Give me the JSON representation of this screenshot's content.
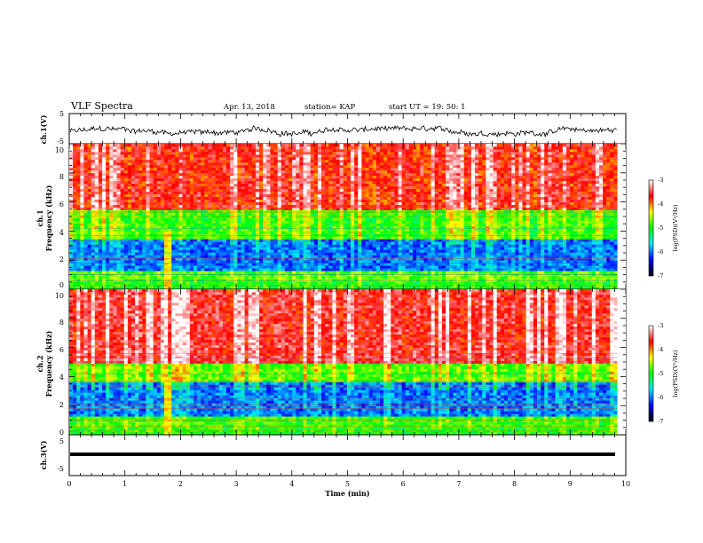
{
  "header": {
    "title": "VLF Spectra",
    "date": "Apr. 13, 2018",
    "station": "station= KAP",
    "start": "start  UT =   19: 50: 1"
  },
  "chart_data": [
    {
      "type": "line",
      "panel": "ch1-waveform",
      "ylabel": "ch.1(V)",
      "ylim": [
        -5,
        5
      ],
      "xlim": [
        0,
        9.85
      ],
      "y_tick_labels": [
        "5",
        "-5"
      ],
      "amplitude_range": [
        -2.5,
        0.5
      ]
    },
    {
      "type": "heatmap",
      "panel": "ch1-spectrogram",
      "ylabel_line1": "ch.1",
      "ylabel_line2": "Frequency  (kHz)",
      "ylim": [
        0,
        10
      ],
      "y_tick_labels": [
        "0",
        "2",
        "4",
        "6",
        "8",
        "10"
      ],
      "colorbar": {
        "label": "log(PSD)(V²/Hz)",
        "range": [
          -7,
          -3
        ],
        "tick_labels": [
          "-3",
          "-4",
          "-5",
          "-6",
          "-7"
        ]
      },
      "bands_khz": [
        {
          "from": 0,
          "to": 0.6,
          "logpsd": -5.0
        },
        {
          "from": 0.6,
          "to": 1.2,
          "logpsd": -4.8
        },
        {
          "from": 1.2,
          "to": 3.5,
          "logpsd": -6.0
        },
        {
          "from": 3.5,
          "to": 5.5,
          "logpsd": -4.9
        },
        {
          "from": 5.5,
          "to": 10,
          "logpsd": -3.7
        }
      ],
      "bright_column_min": [
        1.7,
        1.85
      ]
    },
    {
      "type": "heatmap",
      "panel": "ch2-spectrogram",
      "ylabel_line1": "ch.2",
      "ylabel_line2": "Frequency  (kHz)",
      "ylim": [
        0,
        10
      ],
      "y_tick_labels": [
        "0",
        "2",
        "4",
        "6",
        "8",
        "10"
      ],
      "colorbar": {
        "label": "log(PSD)(V²/Hz)",
        "range": [
          -7,
          -3
        ],
        "tick_labels": [
          "-3",
          "-4",
          "-5",
          "-6",
          "-7"
        ]
      },
      "bands_khz": [
        {
          "from": 0,
          "to": 0.6,
          "logpsd": -5.0
        },
        {
          "from": 0.6,
          "to": 1.2,
          "logpsd": -4.9
        },
        {
          "from": 1.2,
          "to": 3.6,
          "logpsd": -6.0
        },
        {
          "from": 3.6,
          "to": 5.0,
          "logpsd": -4.8
        },
        {
          "from": 5.0,
          "to": 10,
          "logpsd": -3.6
        }
      ],
      "bright_column_min": [
        1.7,
        1.85
      ]
    },
    {
      "type": "line",
      "panel": "ch3-waveform",
      "ylabel": "ch.3(V)",
      "ylim": [
        -5,
        5
      ],
      "xlim": [
        0,
        9.85
      ],
      "y_tick_labels": [
        "5",
        "-5"
      ],
      "constant_value": 0,
      "xlabel": "Time  (min)",
      "x_tick_labels": [
        "0",
        "1",
        "2",
        "3",
        "4",
        "5",
        "6",
        "7",
        "8",
        "9",
        "10"
      ]
    }
  ],
  "colors": {
    "scale": [
      "#000000",
      "#0000ff",
      "#00e5ff",
      "#00ff00",
      "#ffff00",
      "#ff0000",
      "#ffffff"
    ]
  }
}
